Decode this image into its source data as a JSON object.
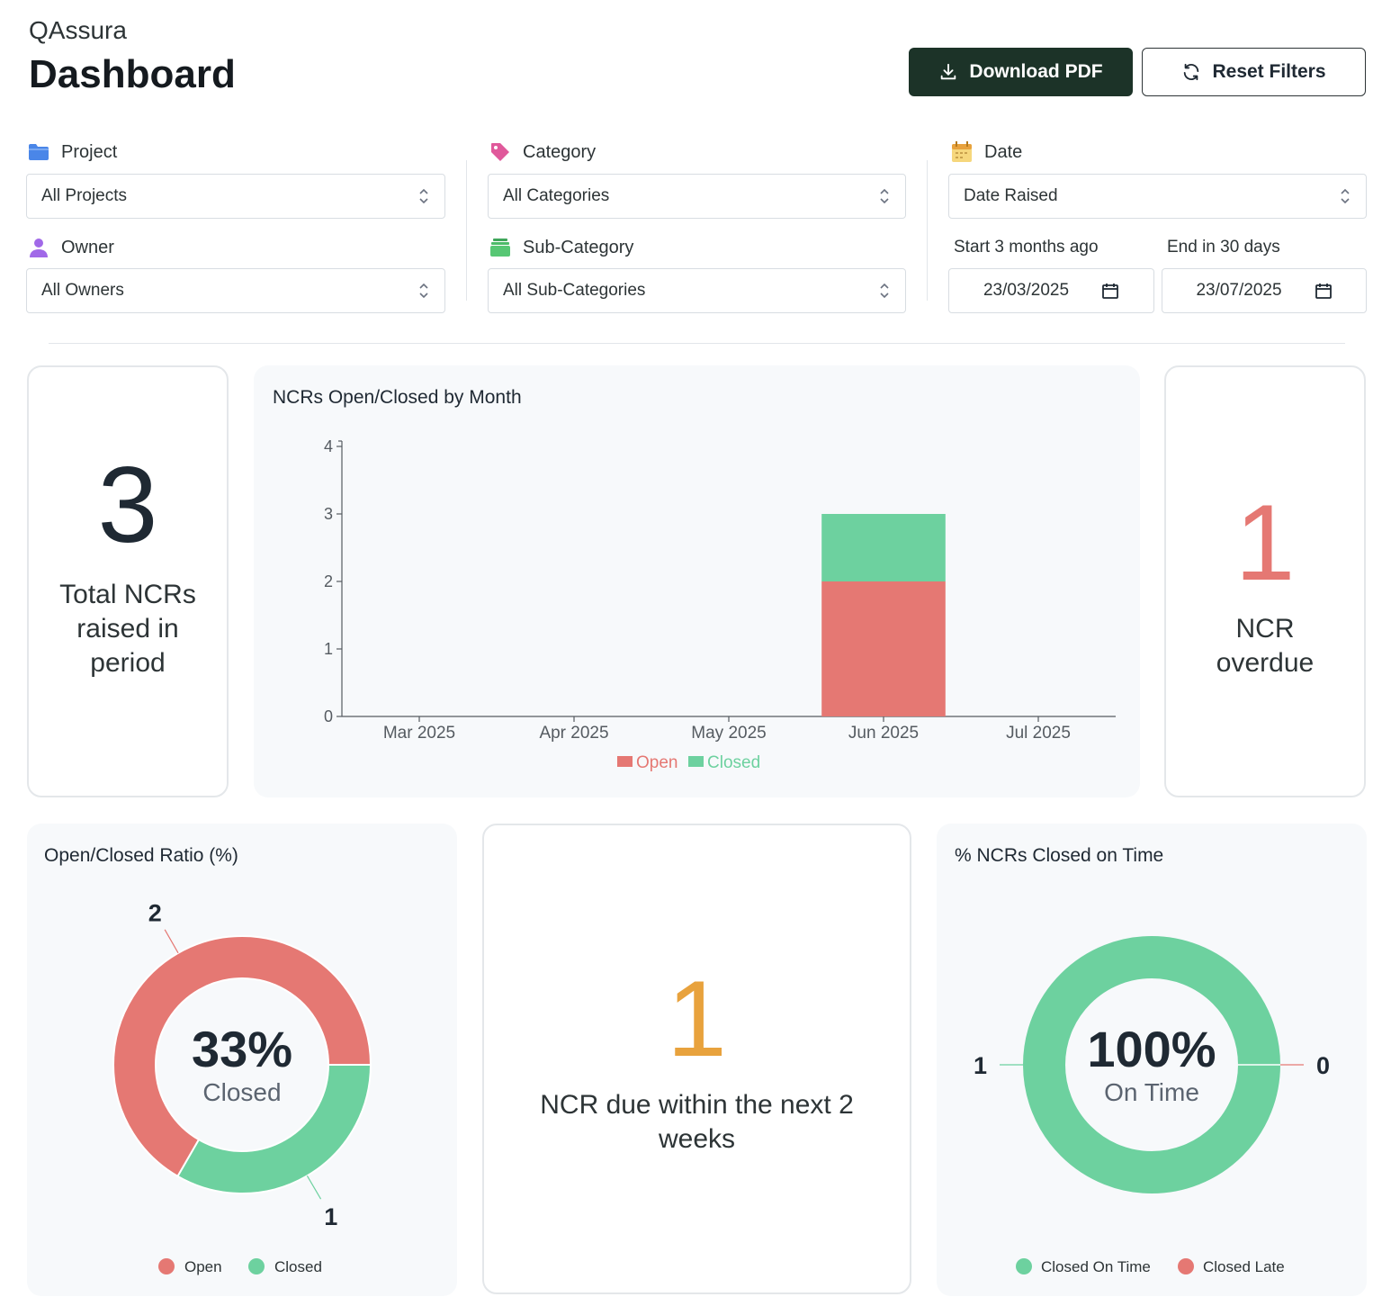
{
  "header": {
    "app_name": "QAssura",
    "title": "Dashboard",
    "download_label": "Download PDF",
    "reset_label": "Reset Filters"
  },
  "filters": {
    "project": {
      "label": "Project",
      "value": "All Projects"
    },
    "owner": {
      "label": "Owner",
      "value": "All Owners"
    },
    "category": {
      "label": "Category",
      "value": "All Categories"
    },
    "sub_category": {
      "label": "Sub-Category",
      "value": "All Sub-Categories"
    },
    "date": {
      "label": "Date",
      "value": "Date Raised"
    },
    "start": {
      "label": "Start 3 months ago",
      "value": "23/03/2025"
    },
    "end": {
      "label": "End in 30 days",
      "value": "23/07/2025"
    }
  },
  "colors": {
    "open": "#e57873",
    "closed": "#6dd19f",
    "due": "#e8a23d",
    "dark": "#1c3328"
  },
  "stats": {
    "total": {
      "value": "3",
      "label": "Total NCRs raised in period"
    },
    "overdue": {
      "value": "1",
      "label": "NCR overdue"
    },
    "due_soon": {
      "value": "1",
      "label": "NCR due within the next 2 weeks"
    }
  },
  "charts": {
    "monthly_title": "NCRs Open/Closed by Month",
    "ratio_title": "Open/Closed Ratio (%)",
    "ratio_center_value": "33%",
    "ratio_center_label": "Closed",
    "ontime_title": "% NCRs Closed on Time",
    "ontime_center_value": "100%",
    "ontime_center_label": "On Time"
  },
  "chart_data": [
    {
      "type": "bar",
      "stacked": true,
      "title": "NCRs Open/Closed by Month",
      "categories": [
        "Mar 2025",
        "Apr 2025",
        "May 2025",
        "Jun 2025",
        "Jul 2025"
      ],
      "series": [
        {
          "name": "Open",
          "values": [
            0,
            0,
            0,
            2,
            0
          ]
        },
        {
          "name": "Closed",
          "values": [
            0,
            0,
            0,
            1,
            0
          ]
        }
      ],
      "ylim": [
        0,
        4
      ],
      "yticks": [
        "0",
        "1",
        "2",
        "3",
        "4"
      ],
      "legend": "bottom"
    },
    {
      "type": "pie",
      "donut": true,
      "title": "Open/Closed Ratio (%)",
      "labels": [
        "Open",
        "Closed"
      ],
      "values": [
        2,
        1
      ],
      "data_labels": [
        "2",
        "1"
      ],
      "legend": "bottom"
    },
    {
      "type": "pie",
      "donut": true,
      "title": "% NCRs Closed on Time",
      "labels": [
        "Closed On Time",
        "Closed Late"
      ],
      "values": [
        1,
        0
      ],
      "data_labels": [
        "1",
        "0"
      ],
      "legend": "bottom"
    }
  ]
}
